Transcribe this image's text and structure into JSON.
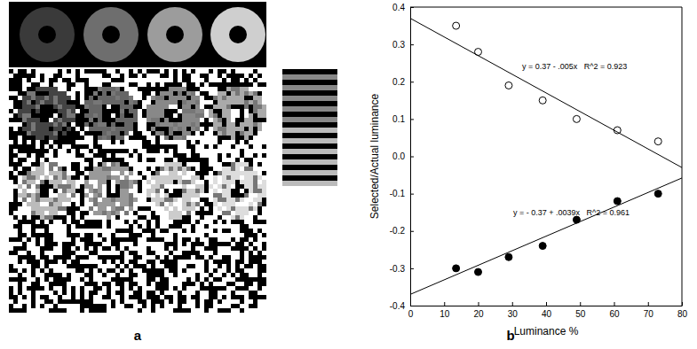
{
  "panel_labels": [
    "a",
    "b"
  ],
  "chart_data": {
    "type": "scatter",
    "xlabel": "Luminance %",
    "ylabel": "Selected/Actual luminance",
    "xlim": [
      0,
      80
    ],
    "ylim": [
      -0.4,
      0.4
    ],
    "xticks": [
      0,
      10,
      20,
      30,
      40,
      50,
      60,
      70,
      80
    ],
    "yticks": [
      -0.4,
      -0.3,
      -0.2,
      -0.1,
      {
        "value": 0,
        "label": "0.0"
      },
      0.1,
      0.2,
      0.3,
      0.4
    ],
    "annotations": [
      "y = 0.37 - .005x   R^2 = 0.923",
      "y = - 0.37 + .0039x   R^2 = 0.961"
    ],
    "series": [
      {
        "type": "scatter",
        "marker": "circle-open",
        "color": "#000000",
        "x": [
          13.5,
          20,
          29,
          39,
          49,
          61,
          73
        ],
        "values": [
          0.35,
          0.28,
          0.19,
          0.15,
          0.1,
          0.07,
          0.04
        ]
      },
      {
        "type": "scatter",
        "marker": "circle",
        "color": "#000000",
        "x": [
          13.5,
          20,
          29,
          39,
          49,
          61,
          73
        ],
        "values": [
          -0.3,
          -0.31,
          -0.27,
          -0.24,
          -0.17,
          -0.12,
          -0.1
        ]
      },
      {
        "type": "line",
        "line_style": "solid",
        "color": "#000000",
        "x": [
          0,
          80
        ],
        "values": [
          0.37,
          -0.03
        ]
      },
      {
        "type": "line",
        "line_style": "solid",
        "color": "#000000",
        "x": [
          0,
          80
        ],
        "values": [
          -0.37,
          -0.058
        ]
      }
    ]
  }
}
